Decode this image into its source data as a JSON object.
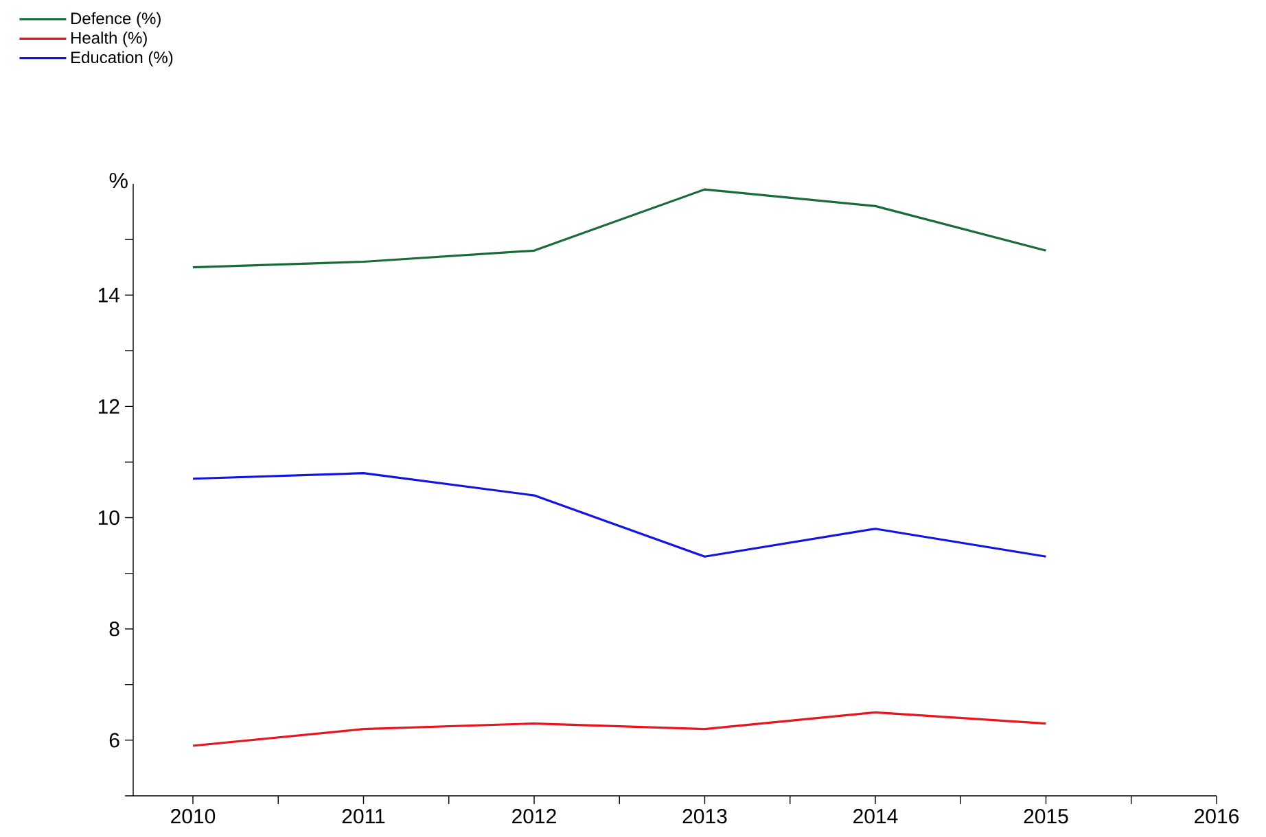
{
  "chart_data": {
    "type": "line",
    "ylabel": "%",
    "x": [
      2010,
      2011,
      2012,
      2013,
      2014,
      2015
    ],
    "series": [
      {
        "name": "Defence (%)",
        "color": "#1a6b3c",
        "values": [
          14.5,
          14.6,
          14.8,
          15.9,
          15.6,
          14.8
        ]
      },
      {
        "name": "Health (%)",
        "color": "#e8141e",
        "values": [
          5.9,
          6.2,
          6.3,
          6.2,
          6.5,
          6.3
        ]
      },
      {
        "name": "Education (%)",
        "color": "#1414e0",
        "values": [
          10.7,
          10.8,
          10.4,
          9.3,
          9.8,
          9.3
        ]
      }
    ],
    "xlim": [
      2009.65,
      2016
    ],
    "xticks": [
      2010,
      {
        "value": 2010.5,
        "label": null
      },
      2011,
      {
        "value": 2011.5,
        "label": null
      },
      2012,
      {
        "value": 2012.5,
        "label": null
      },
      2013,
      {
        "value": 2013.5,
        "label": null
      },
      2014,
      {
        "value": 2014.5,
        "label": null
      },
      2015,
      {
        "value": 2015.5,
        "label": null
      },
      2016
    ],
    "ylim": [
      5,
      16
    ],
    "yticks": [
      {
        "value": 5,
        "label": null
      },
      6,
      {
        "value": 7,
        "label": null
      },
      8,
      {
        "value": 9,
        "label": null
      },
      10,
      {
        "value": 11,
        "label": null
      },
      12,
      {
        "value": 13,
        "label": null
      },
      14,
      {
        "value": 15,
        "label": null
      }
    ],
    "grid": false,
    "legend": "top left",
    "marker": "none",
    "line_style": "solid"
  }
}
